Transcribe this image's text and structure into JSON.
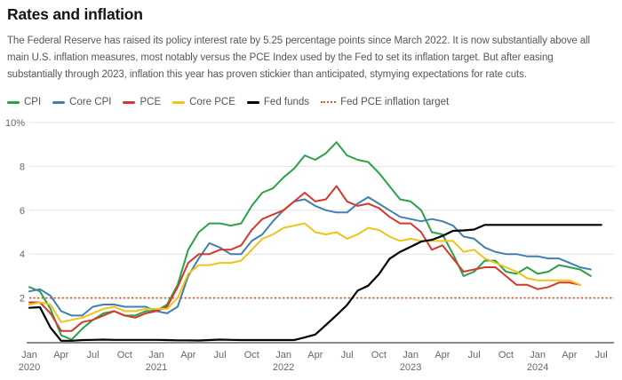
{
  "header": {
    "title": "Rates and inflation",
    "subtitle": "The Federal Reserve has raised its policy interest rate by 5.25 percentage points since March 2022. It is now substantially above all main U.S. inflation measures, most notably versus the PCE Index used by the Fed to set its inflation target. But after easing substantially through 2023, inflation this year has proven stickier than anticipated, stymying expectations for rate cuts."
  },
  "legend": {
    "items": [
      {
        "label": "CPI",
        "color": "#2BA14A",
        "style": "solid"
      },
      {
        "label": "Core CPI",
        "color": "#417FB3",
        "style": "solid"
      },
      {
        "label": "PCE",
        "color": "#D5392E",
        "style": "solid"
      },
      {
        "label": "Core PCE",
        "color": "#F0C31C",
        "style": "solid"
      },
      {
        "label": "Fed funds",
        "color": "#000000",
        "style": "solid"
      },
      {
        "label": "Fed PCE inflation target",
        "color": "#D4552E",
        "style": "dotted"
      }
    ]
  },
  "chart_data": {
    "type": "line",
    "title": "Rates and inflation",
    "x_unit": "month",
    "x_start": "2020-01",
    "x_end": "2024-07",
    "ylim": [
      0,
      10
    ],
    "xlim_months": [
      0,
      54
    ],
    "grid": "horizontal",
    "legend_position": "top",
    "y_ticks": [
      {
        "v": 2,
        "label": "2"
      },
      {
        "v": 4,
        "label": "4"
      },
      {
        "v": 6,
        "label": "6"
      },
      {
        "v": 8,
        "label": "8"
      },
      {
        "v": 10,
        "label": "10%"
      }
    ],
    "x_ticks": [
      {
        "m": 0,
        "label": "Jan",
        "year": "2020"
      },
      {
        "m": 3,
        "label": "Apr"
      },
      {
        "m": 6,
        "label": "Jul"
      },
      {
        "m": 9,
        "label": "Oct"
      },
      {
        "m": 12,
        "label": "Jan",
        "year": "2021"
      },
      {
        "m": 15,
        "label": "Apr"
      },
      {
        "m": 18,
        "label": "Jul"
      },
      {
        "m": 21,
        "label": "Oct"
      },
      {
        "m": 24,
        "label": "Jan",
        "year": "2022"
      },
      {
        "m": 27,
        "label": "Apr"
      },
      {
        "m": 30,
        "label": "Jul"
      },
      {
        "m": 33,
        "label": "Oct"
      },
      {
        "m": 36,
        "label": "Jan",
        "year": "2023"
      },
      {
        "m": 39,
        "label": "Apr"
      },
      {
        "m": 42,
        "label": "Jul"
      },
      {
        "m": 45,
        "label": "Oct"
      },
      {
        "m": 48,
        "label": "Jan",
        "year": "2024"
      },
      {
        "m": 51,
        "label": "Apr"
      },
      {
        "m": 54,
        "label": "Jul"
      }
    ],
    "target_line": {
      "label": "Fed PCE inflation target",
      "value": 2,
      "color": "#D4552E",
      "style": "dotted"
    },
    "series": [
      {
        "name": "CPI",
        "color": "#2BA14A",
        "start_month": 0,
        "values": [
          2.5,
          2.3,
          1.5,
          0.3,
          0.1,
          0.6,
          1.0,
          1.3,
          1.4,
          1.2,
          1.2,
          1.4,
          1.4,
          1.7,
          2.6,
          4.2,
          5.0,
          5.4,
          5.4,
          5.3,
          5.4,
          6.2,
          6.8,
          7.0,
          7.5,
          7.9,
          8.5,
          8.3,
          8.6,
          9.1,
          8.5,
          8.3,
          8.2,
          7.7,
          7.1,
          6.5,
          6.4,
          6.0,
          5.0,
          4.9,
          4.0,
          3.0,
          3.2,
          3.7,
          3.7,
          3.2,
          3.1,
          3.4,
          3.1,
          3.2,
          3.5,
          3.4,
          3.3,
          3.0
        ]
      },
      {
        "name": "Core CPI",
        "color": "#417FB3",
        "start_month": 0,
        "values": [
          2.3,
          2.4,
          2.1,
          1.4,
          1.2,
          1.2,
          1.6,
          1.7,
          1.7,
          1.6,
          1.6,
          1.6,
          1.4,
          1.3,
          1.6,
          3.0,
          3.8,
          4.5,
          4.3,
          4.0,
          4.0,
          4.6,
          4.9,
          5.5,
          6.0,
          6.4,
          6.5,
          6.2,
          6.0,
          5.9,
          5.9,
          6.3,
          6.6,
          6.3,
          6.0,
          5.7,
          5.6,
          5.5,
          5.6,
          5.5,
          5.3,
          4.8,
          4.7,
          4.3,
          4.1,
          4.0,
          4.0,
          3.9,
          3.9,
          3.8,
          3.8,
          3.6,
          3.4,
          3.3
        ]
      },
      {
        "name": "PCE",
        "color": "#D5392E",
        "start_month": 0,
        "values": [
          1.8,
          1.8,
          1.3,
          0.5,
          0.5,
          0.9,
          1.0,
          1.2,
          1.4,
          1.2,
          1.1,
          1.3,
          1.4,
          1.6,
          2.5,
          3.6,
          4.0,
          4.0,
          4.2,
          4.2,
          4.4,
          5.1,
          5.6,
          5.8,
          6.0,
          6.4,
          6.8,
          6.4,
          6.5,
          7.1,
          6.4,
          6.2,
          6.3,
          6.1,
          5.7,
          5.4,
          5.4,
          5.0,
          4.2,
          4.4,
          3.8,
          3.2,
          3.3,
          3.4,
          3.4,
          3.0,
          2.6,
          2.6,
          2.4,
          2.5,
          2.7,
          2.7,
          2.6
        ]
      },
      {
        "name": "Core PCE",
        "color": "#F0C31C",
        "start_month": 0,
        "values": [
          1.7,
          1.8,
          1.7,
          0.9,
          1.0,
          1.1,
          1.3,
          1.5,
          1.6,
          1.4,
          1.4,
          1.5,
          1.5,
          1.5,
          2.0,
          3.1,
          3.5,
          3.5,
          3.6,
          3.6,
          3.7,
          4.2,
          4.7,
          4.9,
          5.2,
          5.3,
          5.4,
          5.0,
          4.9,
          5.0,
          4.7,
          4.9,
          5.2,
          5.1,
          4.8,
          4.6,
          4.7,
          4.6,
          4.6,
          4.6,
          4.6,
          4.1,
          4.2,
          3.8,
          3.6,
          3.4,
          3.2,
          2.9,
          2.8,
          2.8,
          2.8,
          2.8,
          2.6
        ]
      },
      {
        "name": "Fed funds",
        "color": "#000000",
        "start_month": 0,
        "values": [
          1.55,
          1.58,
          0.65,
          0.05,
          0.05,
          0.08,
          0.09,
          0.1,
          0.09,
          0.09,
          0.09,
          0.09,
          0.09,
          0.08,
          0.07,
          0.07,
          0.06,
          0.08,
          0.1,
          0.09,
          0.08,
          0.08,
          0.08,
          0.08,
          0.08,
          0.08,
          0.2,
          0.33,
          0.77,
          1.21,
          1.68,
          2.33,
          2.56,
          3.08,
          3.78,
          4.1,
          4.33,
          4.57,
          4.65,
          4.83,
          5.06,
          5.08,
          5.12,
          5.33,
          5.33,
          5.33,
          5.33,
          5.33,
          5.33,
          5.33,
          5.33,
          5.33,
          5.33,
          5.33,
          5.33
        ]
      }
    ],
    "style_colors": {
      "grid": "#E3E3E3",
      "axis_baseline": "#8A8A8A",
      "tick_text": "#666666"
    }
  }
}
